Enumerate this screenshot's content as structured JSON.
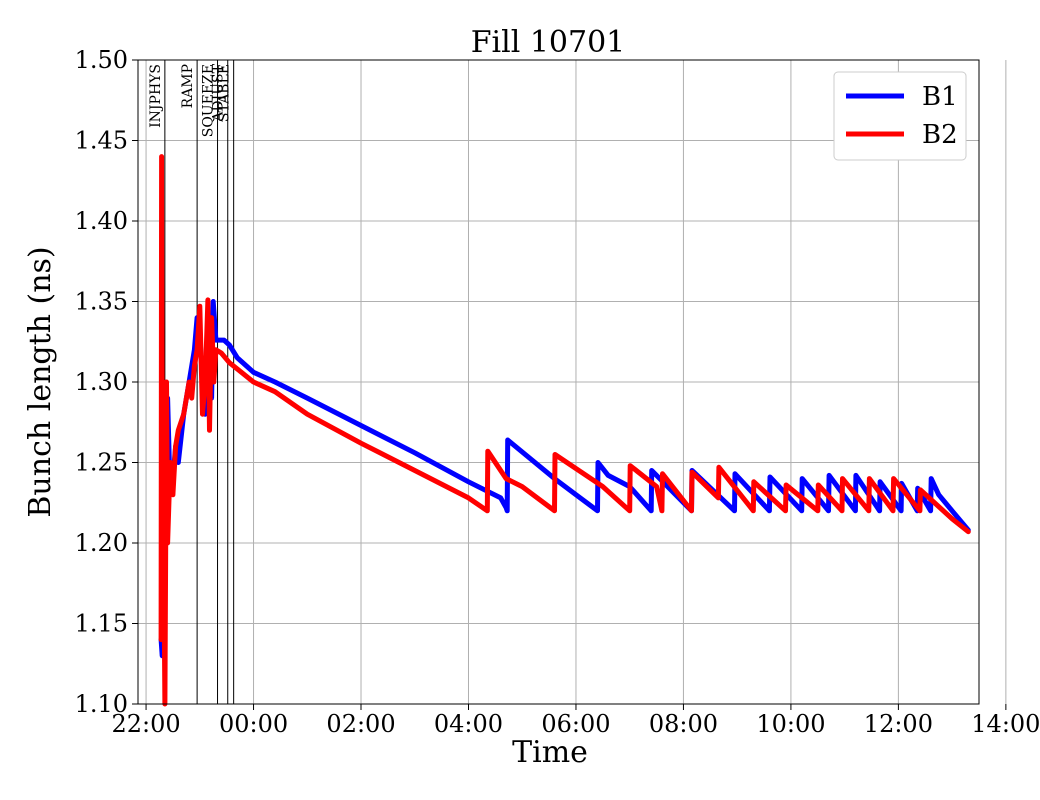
{
  "chart_data": {
    "type": "line",
    "title": "Fill 10701",
    "xlabel": "Time",
    "ylabel": "Bunch length (ns)",
    "xlim_hours": [
      21.85,
      37.5
    ],
    "ylim": [
      1.1,
      1.5
    ],
    "grid": true,
    "legend_position": "top-right",
    "x_ticks": [
      {
        "label": "22:00",
        "t": 22
      },
      {
        "label": "00:00",
        "t": 24
      },
      {
        "label": "02:00",
        "t": 26
      },
      {
        "label": "04:00",
        "t": 28
      },
      {
        "label": "06:00",
        "t": 30
      },
      {
        "label": "08:00",
        "t": 32
      },
      {
        "label": "10:00",
        "t": 34
      },
      {
        "label": "12:00",
        "t": 36
      },
      {
        "label": "14:00",
        "t": 38
      }
    ],
    "y_ticks": [
      {
        "label": "1.10",
        "v": 1.1
      },
      {
        "label": "1.15",
        "v": 1.15
      },
      {
        "label": "1.20",
        "v": 1.2
      },
      {
        "label": "1.25",
        "v": 1.25
      },
      {
        "label": "1.30",
        "v": 1.3
      },
      {
        "label": "1.35",
        "v": 1.35
      },
      {
        "label": "1.40",
        "v": 1.4
      },
      {
        "label": "1.45",
        "v": 1.45
      },
      {
        "label": "1.50",
        "v": 1.5
      }
    ],
    "phases": [
      {
        "label": "INJPHYS",
        "t": 22.35
      },
      {
        "label": "RAMP",
        "t": 22.95
      },
      {
        "label": "SQUEEZE",
        "t": 23.33
      },
      {
        "label": "ADJUST",
        "t": 23.52
      },
      {
        "label": "STABLE",
        "t": 23.63
      }
    ],
    "series": [
      {
        "name": "B1",
        "color": "#0000ff",
        "points": [
          [
            22.28,
            1.14
          ],
          [
            22.3,
            1.13
          ],
          [
            22.32,
            1.28
          ],
          [
            22.35,
            1.21
          ],
          [
            22.4,
            1.29
          ],
          [
            22.45,
            1.23
          ],
          [
            22.5,
            1.24
          ],
          [
            22.55,
            1.26
          ],
          [
            22.6,
            1.25
          ],
          [
            22.7,
            1.28
          ],
          [
            22.8,
            1.3
          ],
          [
            22.9,
            1.32
          ],
          [
            22.95,
            1.34
          ],
          [
            23.0,
            1.33
          ],
          [
            23.05,
            1.3
          ],
          [
            23.1,
            1.28
          ],
          [
            23.15,
            1.29
          ],
          [
            23.2,
            1.32
          ],
          [
            23.22,
            1.29
          ],
          [
            23.25,
            1.35
          ],
          [
            23.3,
            1.326
          ],
          [
            23.45,
            1.326
          ],
          [
            23.55,
            1.323
          ],
          [
            23.7,
            1.315
          ],
          [
            24.0,
            1.306
          ],
          [
            24.4,
            1.3
          ],
          [
            25.0,
            1.29
          ],
          [
            26.0,
            1.273
          ],
          [
            27.0,
            1.256
          ],
          [
            28.0,
            1.238
          ],
          [
            28.6,
            1.228
          ],
          [
            28.65,
            1.225
          ],
          [
            28.7,
            1.222
          ],
          [
            28.72,
            1.22
          ],
          [
            28.73,
            1.264
          ],
          [
            29.6,
            1.24
          ],
          [
            30.0,
            1.23
          ],
          [
            30.4,
            1.22
          ],
          [
            30.41,
            1.25
          ],
          [
            30.6,
            1.242
          ],
          [
            31.0,
            1.235
          ],
          [
            31.4,
            1.22
          ],
          [
            31.41,
            1.245
          ],
          [
            32.15,
            1.22
          ],
          [
            32.16,
            1.245
          ],
          [
            32.95,
            1.22
          ],
          [
            32.96,
            1.243
          ],
          [
            33.6,
            1.22
          ],
          [
            33.61,
            1.241
          ],
          [
            34.2,
            1.22
          ],
          [
            34.21,
            1.24
          ],
          [
            34.7,
            1.22
          ],
          [
            34.71,
            1.242
          ],
          [
            35.2,
            1.22
          ],
          [
            35.21,
            1.242
          ],
          [
            35.65,
            1.22
          ],
          [
            35.66,
            1.238
          ],
          [
            36.05,
            1.22
          ],
          [
            36.06,
            1.237
          ],
          [
            36.35,
            1.22
          ],
          [
            36.36,
            1.234
          ],
          [
            36.6,
            1.22
          ],
          [
            36.61,
            1.24
          ],
          [
            36.75,
            1.23
          ],
          [
            37.0,
            1.22
          ],
          [
            37.3,
            1.208
          ]
        ]
      },
      {
        "name": "B2",
        "color": "#ff0000",
        "points": [
          [
            22.28,
            1.14
          ],
          [
            22.29,
            1.44
          ],
          [
            22.3,
            1.27
          ],
          [
            22.32,
            1.3
          ],
          [
            22.34,
            1.15
          ],
          [
            22.35,
            1.1
          ],
          [
            22.38,
            1.3
          ],
          [
            22.4,
            1.2
          ],
          [
            22.45,
            1.25
          ],
          [
            22.5,
            1.23
          ],
          [
            22.55,
            1.26
          ],
          [
            22.6,
            1.27
          ],
          [
            22.7,
            1.28
          ],
          [
            22.8,
            1.3
          ],
          [
            22.85,
            1.29
          ],
          [
            22.9,
            1.31
          ],
          [
            22.95,
            1.32
          ],
          [
            23.0,
            1.347
          ],
          [
            23.05,
            1.28
          ],
          [
            23.1,
            1.3
          ],
          [
            23.15,
            1.351
          ],
          [
            23.18,
            1.27
          ],
          [
            23.22,
            1.34
          ],
          [
            23.26,
            1.3
          ],
          [
            23.3,
            1.32
          ],
          [
            23.4,
            1.318
          ],
          [
            23.55,
            1.312
          ],
          [
            23.7,
            1.308
          ],
          [
            24.0,
            1.3
          ],
          [
            24.4,
            1.294
          ],
          [
            25.0,
            1.28
          ],
          [
            26.0,
            1.262
          ],
          [
            27.0,
            1.245
          ],
          [
            28.0,
            1.228
          ],
          [
            28.35,
            1.22
          ],
          [
            28.36,
            1.257
          ],
          [
            28.7,
            1.24
          ],
          [
            29.0,
            1.235
          ],
          [
            29.6,
            1.22
          ],
          [
            29.61,
            1.255
          ],
          [
            30.5,
            1.235
          ],
          [
            31.0,
            1.22
          ],
          [
            31.01,
            1.248
          ],
          [
            31.5,
            1.235
          ],
          [
            31.6,
            1.22
          ],
          [
            31.61,
            1.243
          ],
          [
            32.15,
            1.22
          ],
          [
            32.16,
            1.244
          ],
          [
            32.65,
            1.228
          ],
          [
            32.66,
            1.247
          ],
          [
            33.3,
            1.22
          ],
          [
            33.31,
            1.238
          ],
          [
            33.9,
            1.22
          ],
          [
            33.91,
            1.236
          ],
          [
            34.5,
            1.22
          ],
          [
            34.51,
            1.236
          ],
          [
            34.95,
            1.22
          ],
          [
            34.96,
            1.24
          ],
          [
            35.45,
            1.22
          ],
          [
            35.46,
            1.24
          ],
          [
            35.9,
            1.22
          ],
          [
            35.91,
            1.24
          ],
          [
            36.4,
            1.22
          ],
          [
            36.41,
            1.233
          ],
          [
            37.0,
            1.215
          ],
          [
            37.3,
            1.207
          ]
        ]
      }
    ]
  }
}
